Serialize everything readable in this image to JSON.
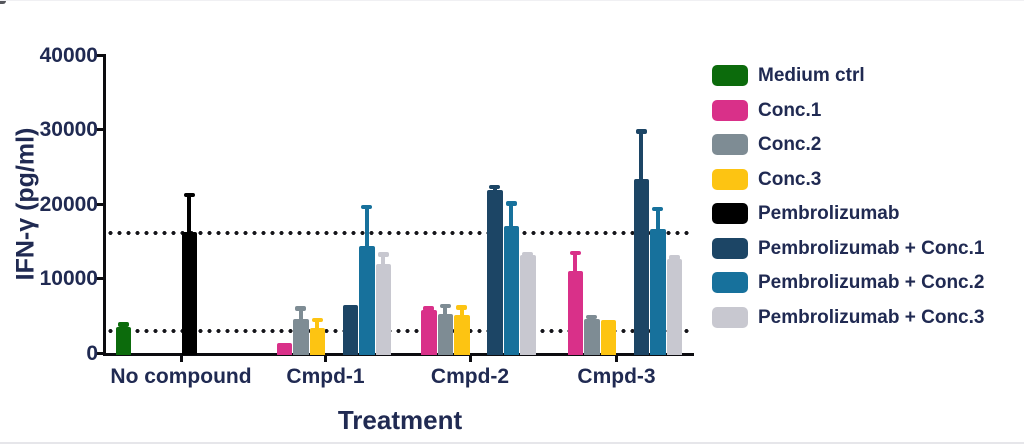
{
  "window": {
    "background": "#ffffff",
    "text_color": "#202a52",
    "axis_color": "#0c0c10"
  },
  "chart_data": {
    "type": "bar",
    "title": "",
    "xlabel": "Treatment",
    "ylabel": "IFN-γ (pg/ml)",
    "ylim": [
      0,
      40000
    ],
    "yticks": [
      0,
      10000,
      20000,
      30000,
      40000
    ],
    "ytick_labels": [
      "0",
      "10000",
      "20000",
      "30000",
      "40000"
    ],
    "grid": false,
    "legend_position": "right",
    "categories": [
      "No compound",
      "Cmpd-1",
      "Cmpd-2",
      "Cmpd-3"
    ],
    "reference_lines": [
      16100,
      3000
    ],
    "series": [
      {
        "name": "Medium ctrl",
        "color": "#0c6b0c",
        "values": [
          3500,
          null,
          null,
          null
        ],
        "error_top": [
          3900,
          null,
          null,
          null
        ]
      },
      {
        "name": "Conc.1",
        "color": "#d93089",
        "values": [
          null,
          1400,
          5800,
          11000
        ],
        "error_top": [
          null,
          null,
          6100,
          13500
        ]
      },
      {
        "name": "Conc.2",
        "color": "#7e8c94",
        "values": [
          null,
          4500,
          5300,
          4600
        ],
        "error_top": [
          null,
          6100,
          6400,
          4900
        ]
      },
      {
        "name": "Conc.3",
        "color": "#fdc412",
        "values": [
          null,
          3400,
          5100,
          4400
        ],
        "error_top": [
          null,
          4500,
          6200,
          null
        ]
      },
      {
        "name": "Pembrolizumab",
        "color": "#000000",
        "values": [
          16300,
          null,
          null,
          null
        ],
        "error_top": [
          21300,
          null,
          null,
          null
        ]
      },
      {
        "name": "Pembrolizumab + Conc.1",
        "color": "#1c4565",
        "values": [
          null,
          6500,
          21900,
          23300
        ],
        "error_top": [
          null,
          null,
          22400,
          29800
        ]
      },
      {
        "name": "Pembrolizumab + Conc.2",
        "color": "#17719c",
        "values": [
          null,
          14400,
          17000,
          16700
        ],
        "error_top": [
          null,
          19700,
          20200,
          19400
        ]
      },
      {
        "name": "Pembrolizumab + Conc.3",
        "color": "#c8c8d0",
        "values": [
          null,
          12000,
          13100,
          12600
        ],
        "error_top": [
          null,
          13300,
          13400,
          12900
        ]
      }
    ]
  }
}
